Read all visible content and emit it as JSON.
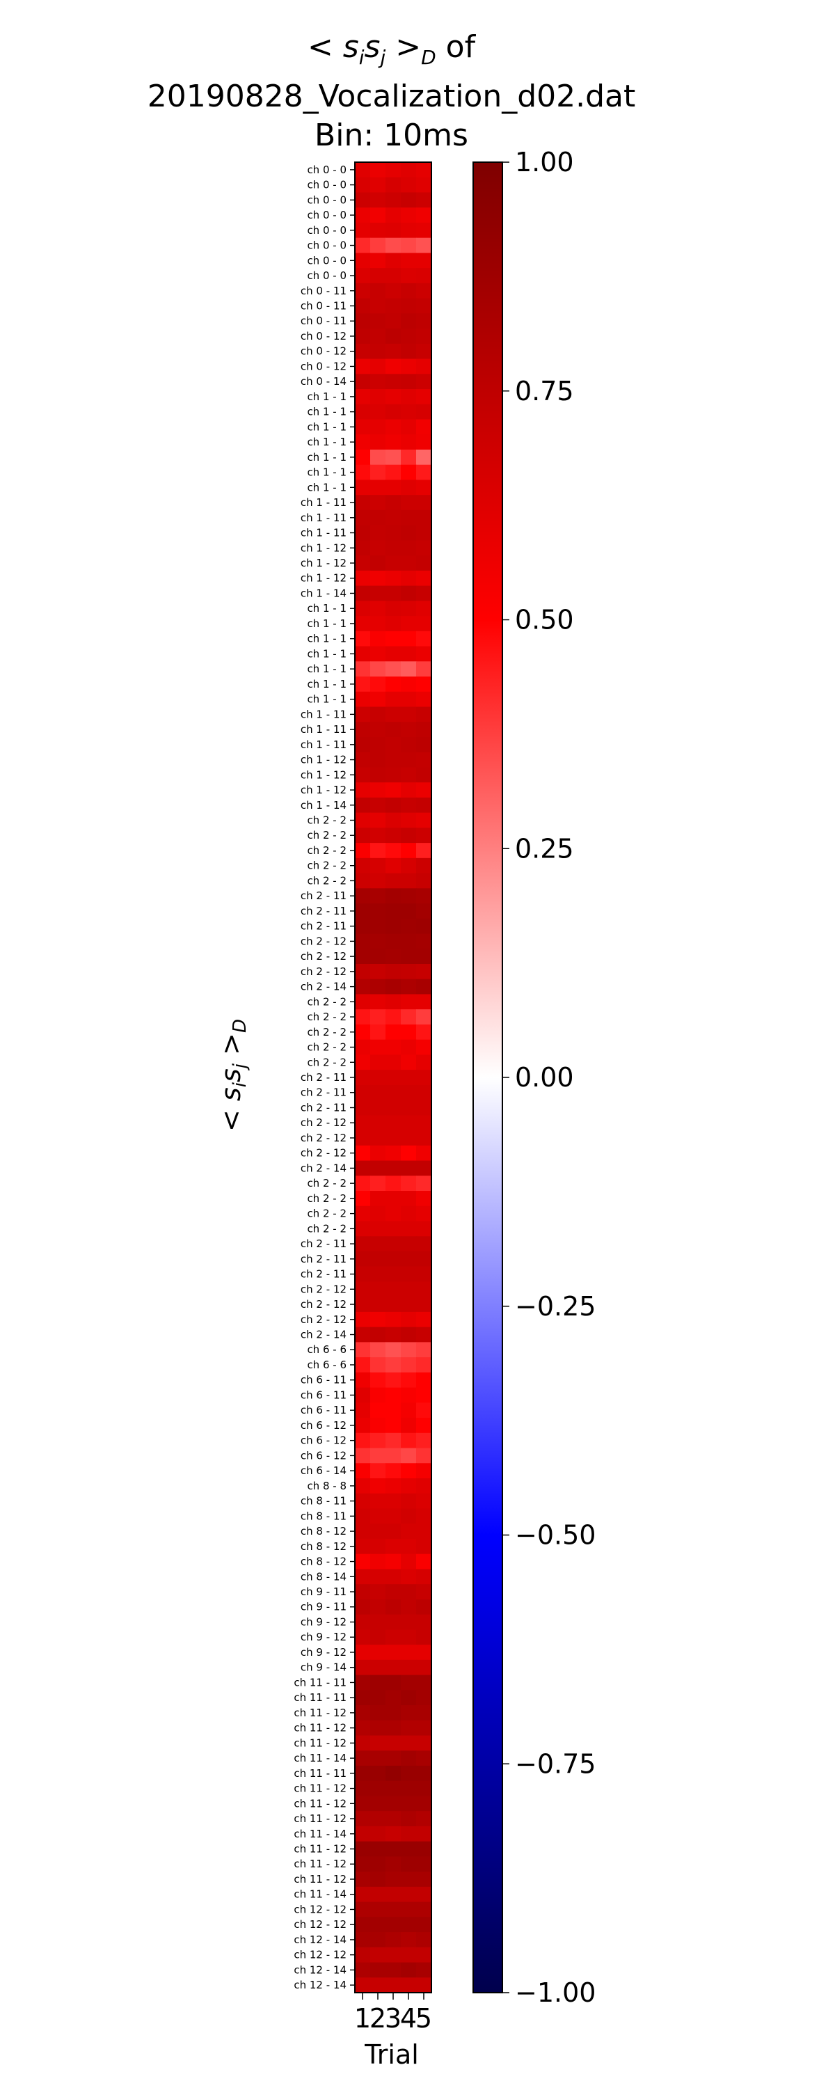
{
  "chart_data": {
    "type": "heatmap",
    "title": [
      "< s_i s_j >_D of",
      "20190828_Vocalization_d02.dat",
      "Bin: 10ms"
    ],
    "xlabel": "Trial",
    "ylabel": "< s_i s_j >_D",
    "x": [
      "1",
      "2",
      "3",
      "4",
      "5"
    ],
    "y": [
      "ch  0 -  0",
      "ch  0 -  0",
      "ch  0 -  0",
      "ch  0 -  0",
      "ch  0 -  0",
      "ch  0 -  0",
      "ch  0 -  0",
      "ch  0 -  0",
      "ch  0 - 11",
      "ch  0 - 11",
      "ch  0 - 11",
      "ch  0 - 12",
      "ch  0 - 12",
      "ch  0 - 12",
      "ch  0 - 14",
      "ch  1 -  1",
      "ch  1 -  1",
      "ch  1 -  1",
      "ch  1 -  1",
      "ch  1 -  1",
      "ch  1 -  1",
      "ch  1 -  1",
      "ch  1 - 11",
      "ch  1 - 11",
      "ch  1 - 11",
      "ch  1 - 12",
      "ch  1 - 12",
      "ch  1 - 12",
      "ch  1 - 14",
      "ch  1 -  1",
      "ch  1 -  1",
      "ch  1 -  1",
      "ch  1 -  1",
      "ch  1 -  1",
      "ch  1 -  1",
      "ch  1 -  1",
      "ch  1 - 11",
      "ch  1 - 11",
      "ch  1 - 11",
      "ch  1 - 12",
      "ch  1 - 12",
      "ch  1 - 12",
      "ch  1 - 14",
      "ch  2 -  2",
      "ch  2 -  2",
      "ch  2 -  2",
      "ch  2 -  2",
      "ch  2 -  2",
      "ch  2 - 11",
      "ch  2 - 11",
      "ch  2 - 11",
      "ch  2 - 12",
      "ch  2 - 12",
      "ch  2 - 12",
      "ch  2 - 14",
      "ch  2 -  2",
      "ch  2 -  2",
      "ch  2 -  2",
      "ch  2 -  2",
      "ch  2 -  2",
      "ch  2 - 11",
      "ch  2 - 11",
      "ch  2 - 11",
      "ch  2 - 12",
      "ch  2 - 12",
      "ch  2 - 12",
      "ch  2 - 14",
      "ch  2 -  2",
      "ch  2 -  2",
      "ch  2 -  2",
      "ch  2 -  2",
      "ch  2 - 11",
      "ch  2 - 11",
      "ch  2 - 11",
      "ch  2 - 12",
      "ch  2 - 12",
      "ch  2 - 12",
      "ch  2 - 14",
      "ch  6 -  6",
      "ch  6 -  6",
      "ch  6 - 11",
      "ch  6 - 11",
      "ch  6 - 11",
      "ch  6 - 12",
      "ch  6 - 12",
      "ch  6 - 12",
      "ch  6 - 14",
      "ch  8 -  8",
      "ch  8 - 11",
      "ch  8 - 11",
      "ch  8 - 12",
      "ch  8 - 12",
      "ch  8 - 12",
      "ch  8 - 14",
      "ch  9 - 11",
      "ch  9 - 11",
      "ch  9 - 12",
      "ch  9 - 12",
      "ch  9 - 12",
      "ch  9 - 14",
      "ch 11 - 11",
      "ch 11 - 11",
      "ch 11 - 12",
      "ch 11 - 12",
      "ch 11 - 12",
      "ch 11 - 14",
      "ch 11 - 11",
      "ch 11 - 12",
      "ch 11 - 12",
      "ch 11 - 12",
      "ch 11 - 14",
      "ch 11 - 12",
      "ch 11 - 12",
      "ch 11 - 12",
      "ch 11 - 14",
      "ch 12 - 12",
      "ch 12 - 12",
      "ch 12 - 14",
      "ch 12 - 12",
      "ch 12 - 14",
      "ch 12 - 14"
    ],
    "values": [
      [
        0.62,
        0.58,
        0.6,
        0.62,
        0.6
      ],
      [
        0.65,
        0.62,
        0.66,
        0.64,
        0.62
      ],
      [
        0.7,
        0.68,
        0.7,
        0.72,
        0.7
      ],
      [
        0.58,
        0.55,
        0.6,
        0.58,
        0.56
      ],
      [
        0.6,
        0.62,
        0.63,
        0.61,
        0.6
      ],
      [
        0.42,
        0.38,
        0.35,
        0.36,
        0.34
      ],
      [
        0.6,
        0.58,
        0.62,
        0.6,
        0.6
      ],
      [
        0.64,
        0.66,
        0.66,
        0.64,
        0.65
      ],
      [
        0.7,
        0.72,
        0.7,
        0.72,
        0.7
      ],
      [
        0.74,
        0.72,
        0.73,
        0.74,
        0.73
      ],
      [
        0.76,
        0.75,
        0.74,
        0.76,
        0.75
      ],
      [
        0.75,
        0.74,
        0.76,
        0.75,
        0.74
      ],
      [
        0.72,
        0.73,
        0.72,
        0.74,
        0.72
      ],
      [
        0.58,
        0.6,
        0.56,
        0.58,
        0.6
      ],
      [
        0.72,
        0.7,
        0.71,
        0.72,
        0.7
      ],
      [
        0.6,
        0.62,
        0.6,
        0.62,
        0.6
      ],
      [
        0.65,
        0.64,
        0.66,
        0.65,
        0.66
      ],
      [
        0.6,
        0.6,
        0.58,
        0.6,
        0.55
      ],
      [
        0.56,
        0.58,
        0.56,
        0.58,
        0.56
      ],
      [
        0.5,
        0.35,
        0.34,
        0.42,
        0.3
      ],
      [
        0.48,
        0.44,
        0.46,
        0.5,
        0.45
      ],
      [
        0.6,
        0.6,
        0.6,
        0.62,
        0.6
      ],
      [
        0.72,
        0.7,
        0.72,
        0.7,
        0.7
      ],
      [
        0.74,
        0.74,
        0.73,
        0.74,
        0.74
      ],
      [
        0.75,
        0.73,
        0.74,
        0.75,
        0.74
      ],
      [
        0.74,
        0.72,
        0.73,
        0.73,
        0.72
      ],
      [
        0.72,
        0.74,
        0.72,
        0.72,
        0.73
      ],
      [
        0.58,
        0.56,
        0.58,
        0.6,
        0.58
      ],
      [
        0.73,
        0.72,
        0.72,
        0.74,
        0.72
      ],
      [
        0.64,
        0.62,
        0.65,
        0.64,
        0.62
      ],
      [
        0.6,
        0.6,
        0.62,
        0.6,
        0.6
      ],
      [
        0.48,
        0.52,
        0.5,
        0.5,
        0.48
      ],
      [
        0.6,
        0.58,
        0.6,
        0.6,
        0.58
      ],
      [
        0.4,
        0.36,
        0.34,
        0.32,
        0.38
      ],
      [
        0.46,
        0.48,
        0.5,
        0.52,
        0.5
      ],
      [
        0.58,
        0.56,
        0.6,
        0.6,
        0.58
      ],
      [
        0.7,
        0.72,
        0.7,
        0.7,
        0.72
      ],
      [
        0.75,
        0.74,
        0.75,
        0.74,
        0.75
      ],
      [
        0.76,
        0.75,
        0.74,
        0.75,
        0.76
      ],
      [
        0.74,
        0.75,
        0.74,
        0.74,
        0.73
      ],
      [
        0.72,
        0.74,
        0.73,
        0.72,
        0.74
      ],
      [
        0.6,
        0.58,
        0.56,
        0.6,
        0.58
      ],
      [
        0.74,
        0.72,
        0.74,
        0.72,
        0.73
      ],
      [
        0.62,
        0.6,
        0.64,
        0.62,
        0.6
      ],
      [
        0.7,
        0.68,
        0.7,
        0.72,
        0.7
      ],
      [
        0.52,
        0.46,
        0.48,
        0.5,
        0.44
      ],
      [
        0.68,
        0.66,
        0.62,
        0.66,
        0.7
      ],
      [
        0.7,
        0.68,
        0.7,
        0.7,
        0.72
      ],
      [
        0.85,
        0.84,
        0.86,
        0.85,
        0.84
      ],
      [
        0.88,
        0.87,
        0.88,
        0.88,
        0.86
      ],
      [
        0.88,
        0.87,
        0.88,
        0.87,
        0.88
      ],
      [
        0.86,
        0.85,
        0.86,
        0.86,
        0.85
      ],
      [
        0.86,
        0.86,
        0.85,
        0.86,
        0.86
      ],
      [
        0.74,
        0.72,
        0.74,
        0.73,
        0.72
      ],
      [
        0.8,
        0.82,
        0.84,
        0.82,
        0.84
      ],
      [
        0.62,
        0.6,
        0.62,
        0.6,
        0.6
      ],
      [
        0.46,
        0.44,
        0.46,
        0.42,
        0.38
      ],
      [
        0.5,
        0.46,
        0.5,
        0.5,
        0.46
      ],
      [
        0.58,
        0.56,
        0.56,
        0.58,
        0.54
      ],
      [
        0.56,
        0.6,
        0.6,
        0.56,
        0.6
      ],
      [
        0.66,
        0.66,
        0.66,
        0.66,
        0.66
      ],
      [
        0.68,
        0.68,
        0.68,
        0.68,
        0.68
      ],
      [
        0.68,
        0.68,
        0.68,
        0.68,
        0.68
      ],
      [
        0.66,
        0.66,
        0.66,
        0.66,
        0.66
      ],
      [
        0.66,
        0.66,
        0.66,
        0.66,
        0.66
      ],
      [
        0.5,
        0.58,
        0.56,
        0.5,
        0.56
      ],
      [
        0.74,
        0.74,
        0.74,
        0.74,
        0.74
      ],
      [
        0.46,
        0.44,
        0.46,
        0.44,
        0.42
      ],
      [
        0.5,
        0.6,
        0.6,
        0.6,
        0.56
      ],
      [
        0.6,
        0.62,
        0.6,
        0.62,
        0.6
      ],
      [
        0.64,
        0.64,
        0.64,
        0.64,
        0.64
      ],
      [
        0.72,
        0.72,
        0.72,
        0.72,
        0.72
      ],
      [
        0.74,
        0.74,
        0.74,
        0.74,
        0.74
      ],
      [
        0.72,
        0.72,
        0.72,
        0.72,
        0.72
      ],
      [
        0.7,
        0.7,
        0.7,
        0.7,
        0.7
      ],
      [
        0.7,
        0.7,
        0.7,
        0.7,
        0.7
      ],
      [
        0.58,
        0.56,
        0.58,
        0.6,
        0.58
      ],
      [
        0.72,
        0.74,
        0.72,
        0.74,
        0.72
      ],
      [
        0.4,
        0.36,
        0.34,
        0.36,
        0.38
      ],
      [
        0.46,
        0.4,
        0.38,
        0.4,
        0.42
      ],
      [
        0.56,
        0.48,
        0.46,
        0.48,
        0.5
      ],
      [
        0.62,
        0.52,
        0.5,
        0.52,
        0.5
      ],
      [
        0.6,
        0.5,
        0.5,
        0.54,
        0.48
      ],
      [
        0.58,
        0.52,
        0.5,
        0.56,
        0.5
      ],
      [
        0.46,
        0.44,
        0.42,
        0.46,
        0.44
      ],
      [
        0.4,
        0.38,
        0.38,
        0.36,
        0.4
      ],
      [
        0.52,
        0.46,
        0.48,
        0.5,
        0.54
      ],
      [
        0.6,
        0.56,
        0.58,
        0.6,
        0.62
      ],
      [
        0.66,
        0.64,
        0.64,
        0.66,
        0.64
      ],
      [
        0.68,
        0.66,
        0.66,
        0.68,
        0.66
      ],
      [
        0.68,
        0.68,
        0.68,
        0.66,
        0.66
      ],
      [
        0.66,
        0.66,
        0.64,
        0.64,
        0.66
      ],
      [
        0.52,
        0.56,
        0.54,
        0.6,
        0.52
      ],
      [
        0.66,
        0.66,
        0.66,
        0.64,
        0.66
      ],
      [
        0.74,
        0.72,
        0.74,
        0.74,
        0.72
      ],
      [
        0.76,
        0.74,
        0.76,
        0.74,
        0.76
      ],
      [
        0.72,
        0.72,
        0.72,
        0.72,
        0.72
      ],
      [
        0.7,
        0.72,
        0.7,
        0.7,
        0.72
      ],
      [
        0.6,
        0.6,
        0.6,
        0.6,
        0.6
      ],
      [
        0.7,
        0.7,
        0.7,
        0.7,
        0.7
      ],
      [
        0.86,
        0.88,
        0.88,
        0.86,
        0.86
      ],
      [
        0.88,
        0.88,
        0.86,
        0.88,
        0.86
      ],
      [
        0.84,
        0.86,
        0.86,
        0.84,
        0.84
      ],
      [
        0.8,
        0.82,
        0.82,
        0.8,
        0.8
      ],
      [
        0.74,
        0.72,
        0.72,
        0.72,
        0.72
      ],
      [
        0.84,
        0.84,
        0.84,
        0.86,
        0.84
      ],
      [
        0.9,
        0.9,
        0.92,
        0.9,
        0.9
      ],
      [
        0.88,
        0.88,
        0.88,
        0.88,
        0.88
      ],
      [
        0.86,
        0.86,
        0.86,
        0.86,
        0.86
      ],
      [
        0.8,
        0.8,
        0.8,
        0.82,
        0.8
      ],
      [
        0.74,
        0.74,
        0.72,
        0.74,
        0.74
      ],
      [
        0.9,
        0.9,
        0.9,
        0.9,
        0.9
      ],
      [
        0.88,
        0.88,
        0.86,
        0.88,
        0.88
      ],
      [
        0.84,
        0.86,
        0.84,
        0.84,
        0.84
      ],
      [
        0.74,
        0.74,
        0.74,
        0.74,
        0.74
      ],
      [
        0.82,
        0.82,
        0.82,
        0.82,
        0.82
      ],
      [
        0.86,
        0.86,
        0.86,
        0.86,
        0.86
      ],
      [
        0.84,
        0.84,
        0.82,
        0.8,
        0.82
      ],
      [
        0.76,
        0.74,
        0.74,
        0.74,
        0.74
      ],
      [
        0.82,
        0.84,
        0.84,
        0.86,
        0.84
      ],
      [
        0.72,
        0.72,
        0.72,
        0.72,
        0.72
      ]
    ],
    "zlim": [
      -1.0,
      1.0
    ],
    "colorbar_ticks": [
      "1.00",
      "0.75",
      "0.50",
      "0.25",
      "0.00",
      "−0.25",
      "−0.50",
      "−0.75",
      "−1.00"
    ],
    "colormap": "seismic"
  }
}
